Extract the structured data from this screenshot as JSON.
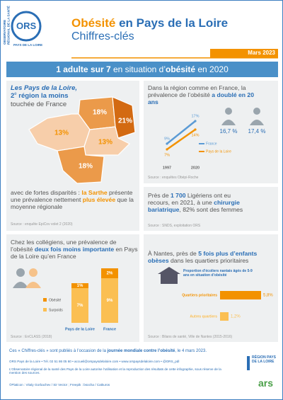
{
  "header": {
    "org_name": "OBSERVATOIRE RÉGIONAL DE LA SANTÉ",
    "org_region": "PAYS DE LA LOIRE",
    "logo": "ORS",
    "title_highlight": "Obésité",
    "title_rest": "en Pays de la Loire",
    "subtitle": "Chiffres-clés",
    "date": "Mars 2023"
  },
  "banner": [
    "1 adulte ",
    "sur 7",
    " en situation d’",
    "obésité",
    " en 2020"
  ],
  "map_panel": {
    "text": [
      "Les Pays de la Loire,",
      "2",
      "e",
      " région",
      " la moins",
      " touchée de France"
    ],
    "regions": [
      "18%",
      "21%",
      "13%",
      "13%",
      "18%"
    ],
    "text2": [
      "avec de fortes disparités : ",
      "la Sarthe",
      " présente une prévalence nettement ",
      "plus élevée",
      " que la moyenne régionale"
    ],
    "source": "Source : enquête EpiCov volet 2 (2020)"
  },
  "trend_panel": {
    "text": [
      "Dans la région comme en France, la prévalence de l’obésité ",
      "a doublé en 20 ans"
    ],
    "chart": {
      "type": "line",
      "x": [
        1997,
        2020
      ],
      "series": [
        {
          "name": "France",
          "color": "#5b9bd5",
          "values": [
            9,
            17
          ],
          "value_labels": [
            "9%",
            "17%"
          ]
        },
        {
          "name": "Pays de la Loire",
          "color": "#f39200",
          "values": [
            7,
            14
          ],
          "value_labels": [
            "7%",
            "14%"
          ]
        }
      ]
    },
    "icons": [
      "16,7 %",
      "17,4 %"
    ],
    "source": "Source : enquêtes Obépi-Roche"
  },
  "surgery_panel": {
    "text": [
      "Près de ",
      "1 700",
      " Ligériens ont eu recours, en 2021, à une ",
      "chirurgie bariatrique",
      ", 82% sont des femmes"
    ],
    "source": "Source : SNDS, exploitation ORS"
  },
  "college_panel": {
    "text": [
      "Chez les collégiens, une prévalence de l’obésité ",
      "deux fois moins importante",
      " en Pays de la Loire qu’en France"
    ],
    "chart": {
      "type": "stacked_bar",
      "categories": [
        "Pays de la Loire",
        "France"
      ],
      "series": [
        {
          "name": "Surpoids",
          "color": "#fbbf52",
          "values": [
            7,
            9
          ],
          "value_labels": [
            "7%",
            "9%"
          ]
        },
        {
          "name": "Obésité",
          "color": "#f39200",
          "values": [
            1,
            2
          ],
          "value_labels": [
            "1%",
            "2%"
          ]
        }
      ]
    },
    "source": "Source : EnCLASS (2018)"
  },
  "nantes_panel": {
    "text": [
      "À Nantes, près de ",
      "5 fois plus d’enfants obèses",
      " dans les quartiers prioritaires"
    ],
    "chart": {
      "type": "hbar",
      "title": "Proportion d’écoliers nantais âgés de 5-9 ans en situation d’obésité",
      "categories": [
        "Quartiers prioritaires",
        "Autres quartiers"
      ],
      "values": [
        5.8,
        1.2
      ],
      "value_labels": [
        "5,8%",
        "1,2%"
      ],
      "colors": [
        "#f39200",
        "#fbbf52"
      ]
    },
    "source": "Source : Bilans de santé, Ville de Nantes (2015-2016)"
  },
  "footer": {
    "intro": [
      "Ces « Chiffres-clés » sont publiés à l’occasion de la ",
      "journée mondiale contre l’obésité",
      ", le 4 mars 2023."
    ],
    "contact": "ORS Pays de la Loire • Tél. 02 51 86 05 60 • accueil@orspaysdelaloire.com • www.orspaysdelaloire.com • @ORS_pdl",
    "legal": "L’Observatoire régional de la santé des Pays de la Loire autorise l’utilisation et la reproduction des résultats de cette infographie, sous réserve de la mention des sources.",
    "credits": "©Platicon : Vitaly Gorbachev / Sir Vector ; Freepik : bsocha / Catkuros",
    "logo_region": "RÉGION PAYS DE LA LOIRE",
    "logo_ars": "ars"
  }
}
